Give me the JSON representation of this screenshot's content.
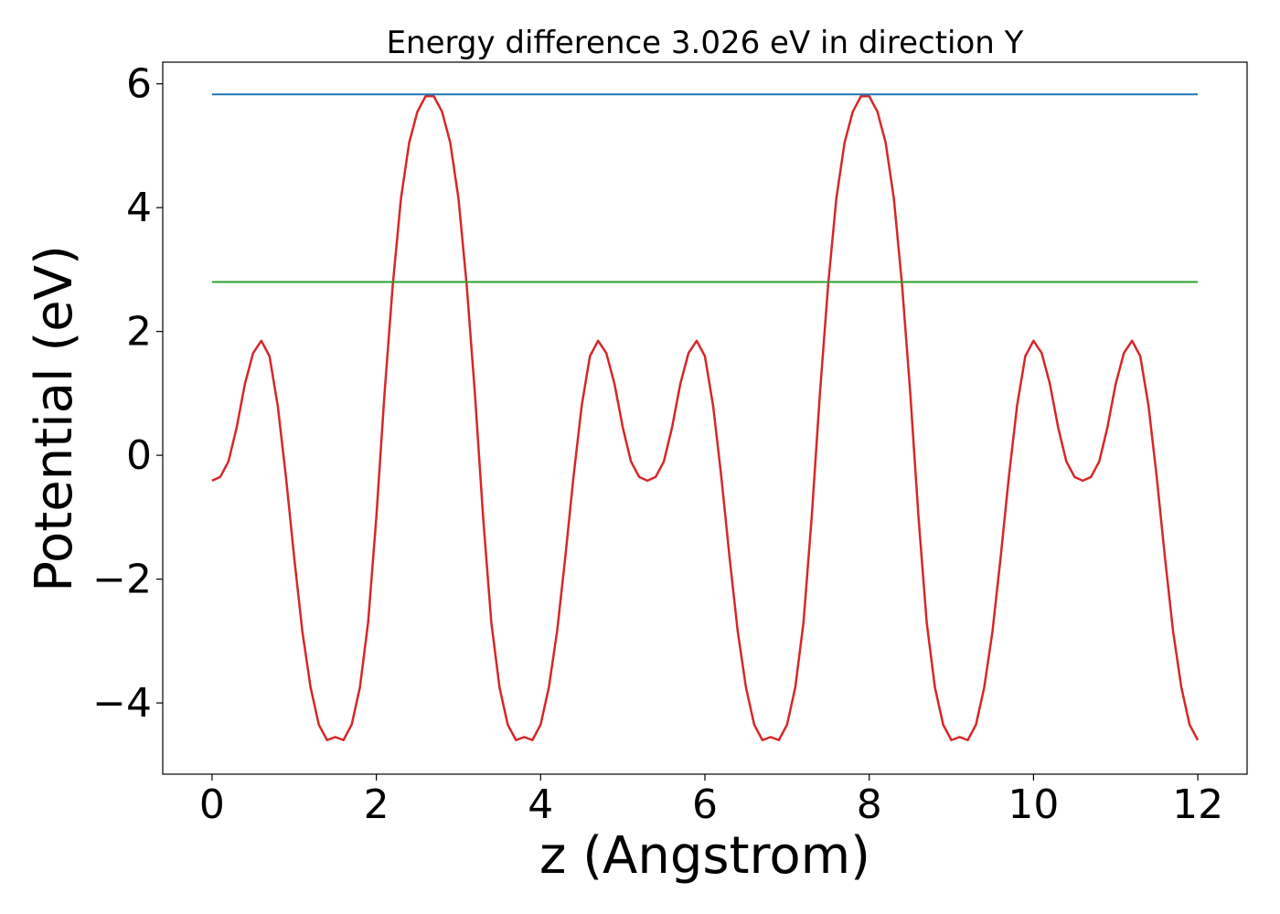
{
  "chart_data": {
    "type": "line",
    "title": "Energy difference 3.026 eV in direction Y",
    "xlabel": "z (Angstrom)",
    "ylabel": "Potential (eV)",
    "xlim": [
      -0.6,
      12.6
    ],
    "ylim": [
      -5.15,
      6.35
    ],
    "xticks": [
      0,
      2,
      4,
      6,
      8,
      10,
      12
    ],
    "xtick_labels": [
      "0",
      "2",
      "4",
      "6",
      "8",
      "10",
      "12"
    ],
    "yticks": [
      -4,
      -2,
      0,
      2,
      4,
      6
    ],
    "ytick_labels": [
      "−4",
      "−2",
      "0",
      "2",
      "4",
      "6"
    ],
    "grid": false,
    "series": [
      {
        "color": "#d62728",
        "x": [
          0.0,
          0.1,
          0.2,
          0.3,
          0.4,
          0.5,
          0.6,
          0.7,
          0.8,
          0.9,
          1.0,
          1.1,
          1.2,
          1.3,
          1.4,
          1.5,
          1.6,
          1.7,
          1.8,
          1.9,
          2.0,
          2.1,
          2.2,
          2.3,
          2.4,
          2.5,
          2.6,
          2.7,
          2.8,
          2.9,
          3.0,
          3.1,
          3.2,
          3.3,
          3.4,
          3.5,
          3.6,
          3.7,
          3.8,
          3.9,
          4.0,
          4.1,
          4.2,
          4.3,
          4.4,
          4.5,
          4.6,
          4.7,
          4.8,
          4.9,
          5.0,
          5.1,
          5.2,
          5.3,
          5.4,
          5.5,
          5.6,
          5.7,
          5.8,
          5.9,
          6.0,
          6.1,
          6.2,
          6.3,
          6.4,
          6.5,
          6.6,
          6.7,
          6.8,
          6.9,
          7.0,
          7.1,
          7.2,
          7.3,
          7.4,
          7.5,
          7.6,
          7.7,
          7.8,
          7.9,
          8.0,
          8.1,
          8.2,
          8.3,
          8.4,
          8.5,
          8.6,
          8.7,
          8.8,
          8.9,
          9.0,
          9.1,
          9.2,
          9.3,
          9.4,
          9.5,
          9.6,
          9.7,
          9.8,
          9.9,
          10.0,
          10.1,
          10.2,
          10.3,
          10.4,
          10.5,
          10.6,
          10.7,
          10.8,
          10.9,
          11.0,
          11.1,
          11.2,
          11.3,
          11.4,
          11.5,
          11.6,
          11.7,
          11.8,
          11.9,
          12.0
        ],
        "y": [
          -0.41,
          -0.35,
          -0.1,
          0.45,
          1.15,
          1.65,
          1.85,
          1.6,
          0.8,
          -0.35,
          -1.65,
          -2.85,
          -3.75,
          -4.35,
          -4.6,
          -4.55,
          -4.6,
          -4.35,
          -3.75,
          -2.7,
          -1.0,
          1.0,
          2.75,
          4.15,
          5.05,
          5.55,
          5.8,
          5.8,
          5.55,
          5.05,
          4.15,
          2.75,
          1.0,
          -1.0,
          -2.7,
          -3.75,
          -4.35,
          -4.6,
          -4.55,
          -4.6,
          -4.35,
          -3.75,
          -2.85,
          -1.65,
          -0.35,
          0.8,
          1.6,
          1.85,
          1.65,
          1.15,
          0.45,
          -0.1,
          -0.35,
          -0.41,
          -0.35,
          -0.1,
          0.45,
          1.15,
          1.65,
          1.85,
          1.6,
          0.8,
          -0.35,
          -1.65,
          -2.85,
          -3.75,
          -4.35,
          -4.6,
          -4.55,
          -4.6,
          -4.35,
          -3.75,
          -2.7,
          -1.0,
          1.0,
          2.75,
          4.15,
          5.05,
          5.55,
          5.8,
          5.8,
          5.55,
          5.05,
          4.15,
          2.75,
          1.0,
          -1.0,
          -2.7,
          -3.75,
          -4.35,
          -4.6,
          -4.55,
          -4.6,
          -4.35,
          -3.75,
          -2.85,
          -1.65,
          -0.35,
          0.8,
          1.6,
          1.85,
          1.65,
          1.15,
          0.45,
          -0.1,
          -0.35,
          -0.41,
          -0.35,
          -0.1,
          0.45,
          1.15,
          1.65,
          1.85,
          1.6,
          0.8,
          -0.35,
          -1.65,
          -2.85,
          -3.75,
          -4.35,
          -4.6
        ]
      },
      {
        "color": "#1f77b4",
        "x": [
          0,
          12
        ],
        "y": [
          5.83,
          5.83
        ]
      },
      {
        "color": "#2ca02c",
        "x": [
          0,
          12
        ],
        "y": [
          2.8,
          2.8
        ]
      }
    ]
  }
}
